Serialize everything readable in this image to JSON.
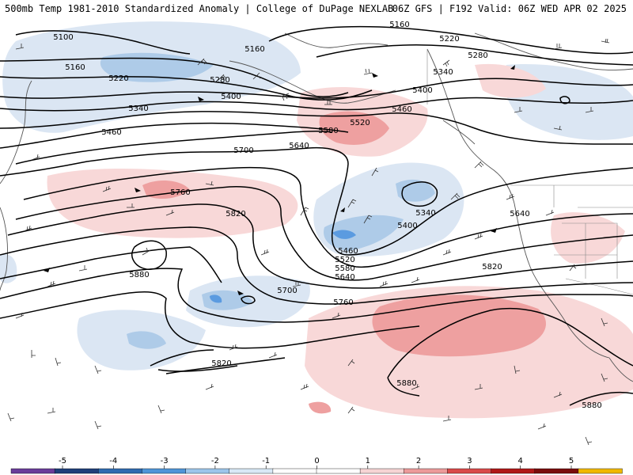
{
  "header": {
    "title_left": "500mb Temp 1981-2010 Standardized Anomaly | College of DuPage NEXLAB",
    "title_right": "06Z GFS | F192 Valid: 06Z WED APR 02 2025"
  },
  "colors": {
    "blue_weak": "#dbe6f3",
    "blue_mid": "#aecbe8",
    "blue_strong": "#5b9be0",
    "red_weak": "#f8d8d8",
    "red_mid": "#eea0a0",
    "contour": "#000000",
    "coast": "#555555",
    "barb": "#333333"
  },
  "contour_labels": [
    {
      "text": "5100"
    },
    {
      "text": "5160"
    },
    {
      "text": "5160"
    },
    {
      "text": "5160"
    },
    {
      "text": "5220"
    },
    {
      "text": "5220"
    },
    {
      "text": "5280"
    },
    {
      "text": "5280"
    },
    {
      "text": "5340"
    },
    {
      "text": "5340"
    },
    {
      "text": "5340"
    },
    {
      "text": "5400"
    },
    {
      "text": "5400"
    },
    {
      "text": "5400"
    },
    {
      "text": "5460"
    },
    {
      "text": "5460"
    },
    {
      "text": "5460"
    },
    {
      "text": "5520"
    },
    {
      "text": "5520"
    },
    {
      "text": "5580"
    },
    {
      "text": "5580"
    },
    {
      "text": "5640"
    },
    {
      "text": "5640"
    },
    {
      "text": "5640"
    },
    {
      "text": "5700"
    },
    {
      "text": "5700"
    },
    {
      "text": "5760"
    },
    {
      "text": "5760"
    },
    {
      "text": "5820"
    },
    {
      "text": "5820"
    },
    {
      "text": "5820"
    },
    {
      "text": "5880"
    },
    {
      "text": "5880"
    },
    {
      "text": "5880"
    }
  ],
  "colorbar": {
    "ticks": [
      "-5",
      "-4",
      "-3",
      "-2",
      "-1",
      "0",
      "1",
      "2",
      "3",
      "4",
      "5"
    ],
    "segments": [
      "#6a3d9a",
      "#1f3f7a",
      "#2f6bb0",
      "#4f95d8",
      "#9cc5ea",
      "#d8e8f6",
      "#ffffff",
      "#ffffff",
      "#f6d4d4",
      "#ec9a9a",
      "#d94a4a",
      "#b01818",
      "#7a0c0c",
      "#f0b800"
    ]
  }
}
